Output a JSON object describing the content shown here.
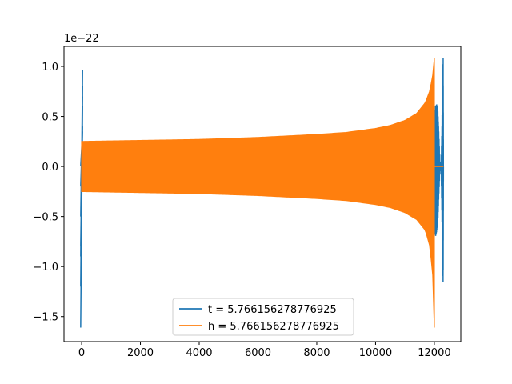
{
  "chart_data": {
    "type": "line",
    "title": "",
    "xlabel": "",
    "ylabel": "",
    "y_offset_label": "1e−22",
    "xlim": [
      -600,
      12900
    ],
    "ylim": [
      -1.75,
      1.2
    ],
    "x_ticks": [
      0,
      2000,
      4000,
      6000,
      8000,
      10000,
      12000
    ],
    "y_ticks": [
      -1.5,
      -1.0,
      -0.5,
      0.0,
      0.5,
      1.0
    ],
    "x_tick_labels": [
      "0",
      "2000",
      "4000",
      "6000",
      "8000",
      "10000",
      "12000"
    ],
    "y_tick_labels": [
      "−1.5",
      "−1.0",
      "−0.5",
      "0.0",
      "0.5",
      "1.0"
    ],
    "grid": false,
    "legend_position": "bottom-center",
    "series": [
      {
        "name": "t = 5.766156278776925",
        "color": "#1f77b4",
        "description_points": {
          "initial_spike": {
            "x": 0,
            "y_min": -1.61,
            "y_max": 0.96
          },
          "final_burst": {
            "x_start": 12020,
            "x_end": 12310,
            "y_min": -1.18,
            "y_max": 1.08
          },
          "end_value": 0.0
        }
      },
      {
        "name": "h = 5.766156278776925",
        "color": "#ff7f0e",
        "envelope": {
          "x": [
            0,
            2000,
            4000,
            6000,
            8000,
            9000,
            10000,
            10500,
            11000,
            11400,
            11700,
            11850,
            11950,
            12000
          ],
          "y_upper": [
            0.25,
            0.26,
            0.27,
            0.29,
            0.32,
            0.34,
            0.38,
            0.41,
            0.46,
            0.53,
            0.64,
            0.76,
            0.92,
            1.08
          ],
          "y_lower": [
            -0.25,
            -0.26,
            -0.27,
            -0.29,
            -0.32,
            -0.34,
            -0.38,
            -0.41,
            -0.46,
            -0.53,
            -0.64,
            -0.8,
            -1.1,
            -1.61
          ]
        },
        "tail": {
          "x_start": 12000,
          "x_end": 12310,
          "y": 0.0
        }
      }
    ]
  }
}
